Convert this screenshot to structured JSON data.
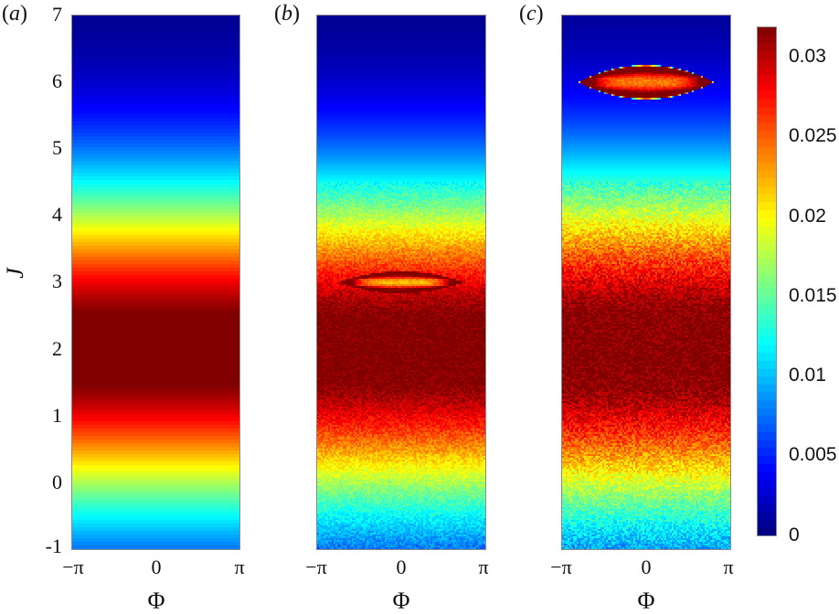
{
  "chart_data": [
    {
      "type": "heatmap",
      "panel": "(a)",
      "title": "",
      "xlabel": "Φ",
      "ylabel": "J",
      "xlim": [
        -3.1416,
        3.1416
      ],
      "ylim": [
        -1,
        7
      ],
      "xticks": [
        "−π",
        "0",
        "π"
      ],
      "yticks": [
        "-1",
        "0",
        "1",
        "2",
        "3",
        "4",
        "5",
        "6",
        "7"
      ],
      "description": "Phi-independent horizontal bands; density peaked at J≈2, decaying symmetrically toward J=-1 and J=7",
      "profile": {
        "center_J": 2.0,
        "sigma_J": 1.75,
        "peak": 0.0335,
        "noise": 0.0
      },
      "blob": null
    },
    {
      "type": "heatmap",
      "panel": "(b)",
      "title": "",
      "xlabel": "Φ",
      "ylabel": "",
      "xlim": [
        -3.1416,
        3.1416
      ],
      "ylim": [
        -1,
        7
      ],
      "xticks": [
        "−π",
        "0",
        "π"
      ],
      "yticks": [],
      "description": "Broad band peaked near J≈2 with granular noise; narrow elliptical island centered at Φ=0, J=3",
      "profile": {
        "center_J": 2.0,
        "sigma_J": 1.75,
        "peak": 0.0335,
        "noise": 0.0015
      },
      "blob": {
        "phi_center": 0.0,
        "J_center": 3.0,
        "phi_halfwidth": 2.35,
        "J_halfheight": 0.17,
        "rim_value": 0.034,
        "core_value": 0.022
      }
    },
    {
      "type": "heatmap",
      "panel": "(c)",
      "title": "",
      "xlabel": "Φ",
      "ylabel": "",
      "xlim": [
        -3.1416,
        3.1416
      ],
      "ylim": [
        -1,
        7
      ],
      "xticks": [
        "−π",
        "0",
        "π"
      ],
      "yticks": [],
      "description": "Broad band peaked near J≈2 with stronger noise; elliptical island centered at Φ=0, J=6 with cyan/yellow edge, dark-red rim and orange-yellow core",
      "profile": {
        "center_J": 2.0,
        "sigma_J": 1.85,
        "peak": 0.0335,
        "noise": 0.0022
      },
      "blob": {
        "phi_center": 0.0,
        "J_center": 6.0,
        "phi_halfwidth": 2.55,
        "J_halfheight": 0.26,
        "rim_value": 0.034,
        "core_value": 0.024
      }
    }
  ],
  "colorbar": {
    "colormap": "jet",
    "min": 0,
    "max": 0.032,
    "ticks": [
      {
        "value": 0,
        "label": "0"
      },
      {
        "value": 0.005,
        "label": "0.005"
      },
      {
        "value": 0.01,
        "label": "0.01"
      },
      {
        "value": 0.015,
        "label": "0.015"
      },
      {
        "value": 0.02,
        "label": "0.02"
      },
      {
        "value": 0.025,
        "label": "0.025"
      },
      {
        "value": 0.03,
        "label": "0.03"
      }
    ]
  },
  "labels": {
    "panel_a": "a",
    "panel_b": "b",
    "panel_c": "c",
    "paren_open": "(",
    "paren_close": ")",
    "ylabel": "J",
    "xlabel": "Φ",
    "xtick_left": "−π",
    "xtick_mid": "0",
    "xtick_right": "π",
    "yticks": [
      "7",
      "6",
      "5",
      "4",
      "3",
      "2",
      "1",
      "0",
      "-1"
    ],
    "cbar_ticks": [
      "0.03",
      "0.025",
      "0.02",
      "0.015",
      "0.01",
      "0.005",
      "0"
    ]
  }
}
